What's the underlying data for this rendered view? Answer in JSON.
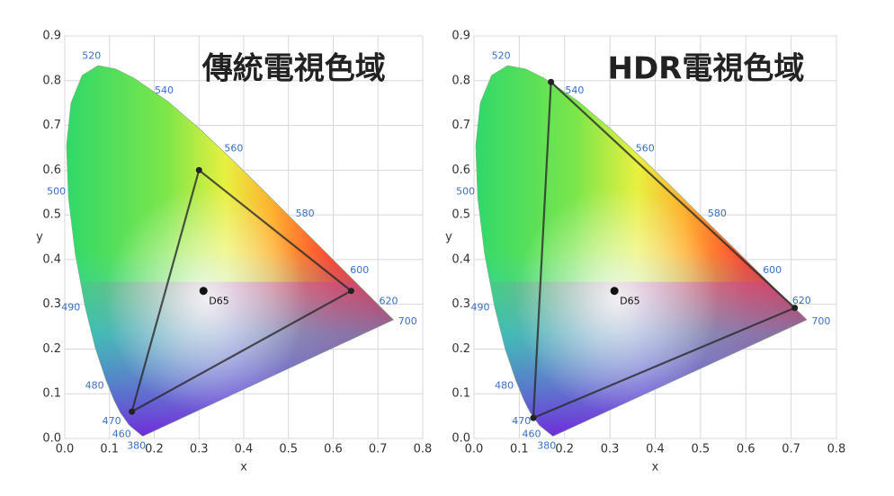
{
  "chart_data": [
    {
      "type": "chromaticity",
      "title": "傳統電視色域",
      "xlabel": "x",
      "ylabel": "y",
      "xlim": [
        0,
        0.8
      ],
      "ylim": [
        0,
        0.9
      ],
      "xticks": [
        {
          "value": 0,
          "label": "0.0"
        },
        0.1,
        0.2,
        0.3,
        0.4,
        0.5,
        0.6,
        0.7,
        0.8
      ],
      "yticks": [
        {
          "value": 0,
          "label": "0.0"
        },
        0.1,
        0.2,
        0.3,
        0.4,
        0.5,
        0.6,
        0.7,
        0.8,
        0.9
      ],
      "grid": true,
      "locus": {
        "x": [
          0.1741,
          0.144,
          0.1241,
          0.1096,
          0.0913,
          0.0687,
          0.0454,
          0.0235,
          0.0082,
          0.0039,
          0.0139,
          0.0389,
          0.0743,
          0.1142,
          0.1547,
          0.2296,
          0.3016,
          0.3731,
          0.4441,
          0.5125,
          0.5752,
          0.627,
          0.6915,
          0.719,
          0.7347
        ],
        "y": [
          0.005,
          0.0297,
          0.0578,
          0.0868,
          0.1327,
          0.2007,
          0.295,
          0.4127,
          0.5384,
          0.6548,
          0.7502,
          0.812,
          0.8338,
          0.8262,
          0.8059,
          0.7543,
          0.6923,
          0.6245,
          0.5547,
          0.4866,
          0.4242,
          0.3725,
          0.3083,
          0.2809,
          0.2653
        ],
        "labels": [
          "380",
          "460",
          "470",
          null,
          "480",
          null,
          "490",
          null,
          "500",
          null,
          null,
          null,
          "520",
          null,
          null,
          "540",
          null,
          "560",
          null,
          "580",
          null,
          "600",
          "620",
          null,
          "700"
        ]
      },
      "gamut": {
        "x": [
          0.64,
          0.3,
          0.15
        ],
        "y": [
          0.33,
          0.6,
          0.06
        ]
      },
      "white_point": {
        "x": 0.31,
        "y": 0.33,
        "label": "D65"
      }
    },
    {
      "type": "chromaticity",
      "title": "HDR電視色域",
      "xlabel": "x",
      "ylabel": "y",
      "xlim": [
        0,
        0.8
      ],
      "ylim": [
        0,
        0.9
      ],
      "xticks": [
        {
          "value": 0,
          "label": "0.0"
        },
        0.1,
        0.2,
        0.3,
        0.4,
        0.5,
        0.6,
        0.7,
        0.8
      ],
      "yticks": [
        {
          "value": 0,
          "label": "0.0"
        },
        0.1,
        0.2,
        0.3,
        0.4,
        0.5,
        0.6,
        0.7,
        0.8,
        0.9
      ],
      "grid": true,
      "locus": {
        "x": [
          0.1741,
          0.144,
          0.1241,
          0.1096,
          0.0913,
          0.0687,
          0.0454,
          0.0235,
          0.0082,
          0.0039,
          0.0139,
          0.0389,
          0.0743,
          0.1142,
          0.1547,
          0.2296,
          0.3016,
          0.3731,
          0.4441,
          0.5125,
          0.5752,
          0.627,
          0.6915,
          0.719,
          0.7347
        ],
        "y": [
          0.005,
          0.0297,
          0.0578,
          0.0868,
          0.1327,
          0.2007,
          0.295,
          0.4127,
          0.5384,
          0.6548,
          0.7502,
          0.812,
          0.8338,
          0.8262,
          0.8059,
          0.7543,
          0.6923,
          0.6245,
          0.5547,
          0.4866,
          0.4242,
          0.3725,
          0.3083,
          0.2809,
          0.2653
        ],
        "labels": [
          "380",
          "460",
          "470",
          null,
          "480",
          null,
          "490",
          null,
          "500",
          null,
          null,
          null,
          "520",
          null,
          null,
          "540",
          null,
          "560",
          null,
          "580",
          null,
          "600",
          "620",
          null,
          "700"
        ]
      },
      "gamut": {
        "x": [
          0.708,
          0.17,
          0.131
        ],
        "y": [
          0.292,
          0.797,
          0.046
        ]
      },
      "white_point": {
        "x": 0.31,
        "y": 0.33,
        "label": "D65"
      }
    }
  ]
}
